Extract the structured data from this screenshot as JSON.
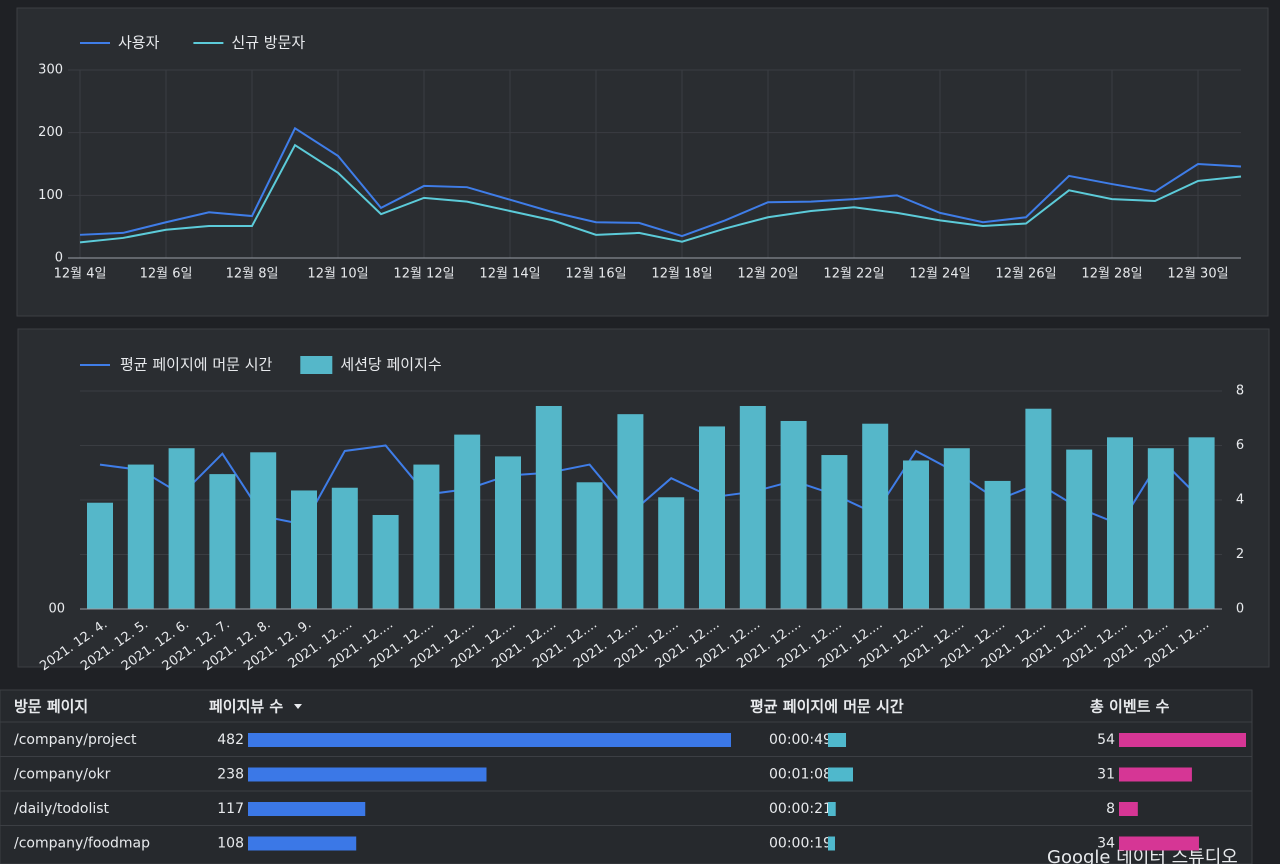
{
  "chart_data": [
    {
      "type": "line",
      "categories": [
        "12월 4일",
        null,
        "12월 6일",
        null,
        "12월 8일",
        null,
        "12월 10일",
        null,
        "12월 12일",
        null,
        "12월 14일",
        null,
        "12월 16일",
        null,
        "12월 18일",
        null,
        "12월 20일",
        null,
        "12월 22일",
        null,
        "12월 24일",
        null,
        "12월 26일",
        null,
        "12월 28일",
        null,
        "12월 30일",
        null
      ],
      "series": [
        {
          "name": "사용자",
          "color": "#3f7de8",
          "values": [
            37,
            40,
            57,
            73,
            67,
            207,
            163,
            80,
            115,
            113,
            93,
            73,
            57,
            56,
            35,
            60,
            89,
            90,
            94,
            100,
            72,
            57,
            65,
            131,
            118,
            106,
            150,
            146
          ]
        },
        {
          "name": "신규 방문자",
          "color": "#5ccbd9",
          "values": [
            25,
            32,
            45,
            51,
            51,
            180,
            136,
            70,
            96,
            90,
            75,
            60,
            37,
            40,
            26,
            47,
            65,
            75,
            81,
            72,
            60,
            51,
            55,
            108,
            94,
            91,
            123,
            130
          ]
        }
      ],
      "ylim": [
        0,
        300
      ],
      "yticks": [
        0,
        100,
        200,
        300
      ],
      "grid": true,
      "legend": "top-left"
    },
    {
      "type": "bar-line",
      "categories": [
        "2021. 12. 4.",
        "2021. 12. 5.",
        "2021. 12. 6.",
        "2021. 12. 7.",
        "2021. 12. 8.",
        "2021. 12. 9.",
        "2021. 12....",
        "2021. 12....",
        "2021. 12....",
        "2021. 12....",
        "2021. 12....",
        "2021. 12....",
        "2021. 12....",
        "2021. 12....",
        "2021. 12....",
        "2021. 12....",
        "2021. 12....",
        "2021. 12....",
        "2021. 12....",
        "2021. 12....",
        "2021. 12....",
        "2021. 12....",
        "2021. 12....",
        "2021. 12....",
        "2021. 12....",
        "2021. 12....",
        "2021. 12....",
        "2021. 12...."
      ],
      "series": [
        {
          "name": "평균 페이지에 머문 시간",
          "type": "line",
          "color": "#3f7de8",
          "axis": "y",
          "values": [
            53,
            51,
            42,
            57,
            34,
            31,
            58,
            60,
            42,
            44,
            49,
            50,
            53,
            35,
            48,
            41,
            43,
            47,
            42,
            35,
            58,
            50,
            40,
            46,
            37,
            31,
            55,
            40
          ]
        },
        {
          "name": "세션당 페이지수",
          "type": "bar",
          "color": "#55b7c9",
          "axis": "y2",
          "values": [
            3.9,
            5.3,
            5.9,
            4.95,
            5.75,
            4.35,
            4.45,
            3.45,
            5.3,
            6.4,
            5.6,
            7.45,
            4.65,
            7.15,
            4.1,
            6.7,
            7.45,
            6.9,
            5.65,
            6.8,
            5.45,
            5.9,
            4.7,
            7.35,
            5.85,
            6.3,
            5.9,
            6.3
          ]
        }
      ],
      "ylim": [
        0,
        80
      ],
      "yticks": [
        {
          "value": 0,
          "label": "00"
        }
      ],
      "y2lim": [
        0,
        8
      ],
      "y2ticks": [
        0,
        2,
        4,
        6,
        8
      ],
      "grid": true,
      "legend": "top-left"
    }
  ],
  "table": {
    "columns": [
      "방문 페이지",
      "페이지뷰 수",
      "평균 페이지에 머문 시간",
      "총 이벤트 수"
    ],
    "colors": [
      "",
      "#3b78e7",
      "#4fb8cc",
      "#d63695"
    ],
    "rows": [
      [
        "/company/project",
        482,
        {
          "value": 49,
          "label": "00:00:49"
        },
        54
      ],
      [
        "/company/okr",
        238,
        {
          "value": 68,
          "label": "00:01:08"
        },
        31
      ],
      [
        "/daily/todolist",
        117,
        {
          "value": 21,
          "label": "00:00:21"
        },
        8
      ],
      [
        "/company/foodmap",
        108,
        {
          "value": 19,
          "label": "00:00:19"
        },
        34
      ]
    ]
  },
  "footer": "Google 데이터 스튜디오"
}
